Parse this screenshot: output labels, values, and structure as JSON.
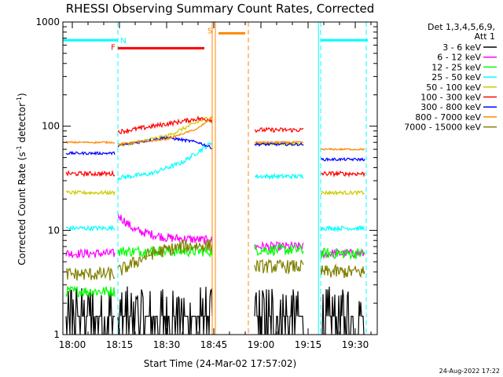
{
  "chart_data": {
    "type": "line",
    "title": "RHESSI Observing Summary Count Rates, Corrected",
    "xlabel": "Start Time (24-Mar-02 17:57:02)",
    "ylabel": "Corrected Count Rate (s⁻¹ detector⁻¹)",
    "ylabel_parts": {
      "main": "Corrected Count Rate (s",
      "exp1": "-1",
      "mid": " detector",
      "exp2": "-1",
      "end": ")"
    },
    "yscale": "log",
    "ylim": [
      1,
      1000
    ],
    "xlim_minutes": [
      -3,
      97
    ],
    "x_ticks": [
      {
        "label": "18:00",
        "min": 0
      },
      {
        "label": "18:15",
        "min": 15
      },
      {
        "label": "18:30",
        "min": 30
      },
      {
        "label": "18:45",
        "min": 45
      },
      {
        "label": "19:00",
        "min": 60
      },
      {
        "label": "19:15",
        "min": 75
      },
      {
        "label": "19:30",
        "min": 90
      }
    ],
    "y_ticks": [
      {
        "label": "1",
        "v": 1
      },
      {
        "label": "10",
        "v": 10
      },
      {
        "label": "100",
        "v": 100
      },
      {
        "label": "1000",
        "v": 1000
      }
    ],
    "legend": {
      "header": [
        "Det 1,3,4,5,6,9,",
        "Att 1"
      ],
      "position": "right-outside"
    },
    "series": [
      {
        "name": "3 - 6 keV",
        "color": "#000000",
        "segments": [
          [
            -2,
            13.5,
            1.5
          ],
          [
            14.5,
            44.5,
            1.8
          ],
          [
            58,
            73.5,
            1.6
          ],
          [
            79,
            93,
            1.6
          ]
        ],
        "noise": 0.5,
        "base": 1.3
      },
      {
        "name": "6 - 12 keV",
        "color": "#ff00ff",
        "segments": [
          [
            -2,
            13.5,
            6.0
          ],
          [
            14.5,
            44.5,
            null
          ],
          [
            58,
            73.5,
            7.0
          ],
          [
            79,
            93,
            6.0
          ]
        ],
        "noise": 0.1,
        "profile": [
          [
            14.5,
            14
          ],
          [
            20,
            10
          ],
          [
            30,
            8.5
          ],
          [
            44.5,
            8.0
          ]
        ]
      },
      {
        "name": "12 - 25 keV",
        "color": "#00ff00",
        "segments": [
          [
            -2,
            13.5,
            2.6
          ],
          [
            14.5,
            44.5,
            6.3
          ],
          [
            58,
            73.5,
            6.5
          ],
          [
            79,
            93,
            6.0
          ]
        ],
        "noise": 0.12
      },
      {
        "name": "25 - 50 keV",
        "color": "#00ffff",
        "segments": [
          [
            -2,
            13.5,
            10.5
          ],
          [
            14.5,
            44.5,
            null
          ],
          [
            58,
            73.5,
            33
          ],
          [
            79,
            93,
            10.5
          ]
        ],
        "noise": 0.05,
        "profile": [
          [
            14.5,
            32
          ],
          [
            25,
            35
          ],
          [
            35,
            45
          ],
          [
            44.5,
            70
          ]
        ]
      },
      {
        "name": "50 - 100 keV",
        "color": "#cccc00",
        "segments": [
          [
            -2,
            13.5,
            23
          ],
          [
            14.5,
            44.5,
            null
          ],
          [
            58,
            73.5,
            68
          ],
          [
            79,
            93,
            23
          ]
        ],
        "noise": 0.04,
        "profile": [
          [
            14.5,
            65
          ],
          [
            30,
            80
          ],
          [
            40,
            110
          ],
          [
            44.5,
            125
          ]
        ]
      },
      {
        "name": "100 - 300 keV",
        "color": "#ff0000",
        "segments": [
          [
            -2,
            13.5,
            35
          ],
          [
            14.5,
            44.5,
            null
          ],
          [
            58,
            73.5,
            92
          ],
          [
            79,
            93,
            35
          ]
        ],
        "noise": 0.05,
        "profile": [
          [
            14.5,
            88
          ],
          [
            30,
            105
          ],
          [
            40,
            118
          ],
          [
            44.5,
            115
          ]
        ]
      },
      {
        "name": "300 - 800 keV",
        "color": "#0000ff",
        "segments": [
          [
            -2,
            13.5,
            55
          ],
          [
            14.5,
            44.5,
            null
          ],
          [
            58,
            73.5,
            67
          ],
          [
            79,
            93,
            48
          ]
        ],
        "noise": 0.03,
        "profile": [
          [
            14.5,
            65
          ],
          [
            30,
            78
          ],
          [
            40,
            70
          ],
          [
            44.5,
            62
          ]
        ]
      },
      {
        "name": "800 - 7000 keV",
        "color": "#ff8800",
        "segments": [
          [
            -2,
            13.5,
            70
          ],
          [
            14.5,
            44.5,
            null
          ],
          [
            58,
            73.5,
            70
          ],
          [
            79,
            93,
            60
          ]
        ],
        "noise": 0.02,
        "profile": [
          [
            14.5,
            67
          ],
          [
            30,
            75
          ],
          [
            40,
            95
          ],
          [
            44.5,
            122
          ]
        ]
      },
      {
        "name": "7000 - 15000 keV",
        "color": "#808000",
        "segments": [
          [
            -2,
            13.5,
            3.8
          ],
          [
            14.5,
            44.5,
            null
          ],
          [
            58,
            73.5,
            4.5
          ],
          [
            79,
            93,
            4.0
          ]
        ],
        "noise": 0.15,
        "profile": [
          [
            14.5,
            4.0
          ],
          [
            25,
            6.0
          ],
          [
            35,
            7.0
          ],
          [
            44.5,
            7.2
          ]
        ]
      }
    ],
    "annotations": {
      "flags": [
        {
          "label": "N",
          "color": "#00ffff",
          "x_min": 14.5,
          "label_y": 670
        },
        {
          "label": "F",
          "color": "#ff0000",
          "x_min": 14.5,
          "label_y": 580
        },
        {
          "label": "S",
          "color": "#ff8800",
          "x_min": 45.5,
          "label_y": 830
        }
      ],
      "bars": [
        {
          "color": "#00ffff",
          "from": -3,
          "to": 14.5,
          "y": 670
        },
        {
          "color": "#ff0000",
          "from": 14.5,
          "to": 42,
          "y": 560
        },
        {
          "color": "#ff8800",
          "from": 46.5,
          "to": 55,
          "y": 780
        },
        {
          "color": "#00ffff",
          "from": 79,
          "to": 94,
          "y": 670
        }
      ],
      "vlines": [
        {
          "x_min": 14.5,
          "color": "#00ffff",
          "dash": true
        },
        {
          "x_min": 44.5,
          "color": "#ff8800",
          "dash": false
        },
        {
          "x_min": 45.5,
          "color": "#ff8800",
          "dash": false
        },
        {
          "x_min": 56,
          "color": "#ff8800",
          "dash": true
        },
        {
          "x_min": 79,
          "color": "#00ffff",
          "dash": true
        },
        {
          "x_min": 78.3,
          "color": "#00ffff",
          "dash": false
        },
        {
          "x_min": 93.5,
          "color": "#00ffff",
          "dash": true
        }
      ]
    },
    "footer_date": "24-Aug-2022 17:22"
  }
}
